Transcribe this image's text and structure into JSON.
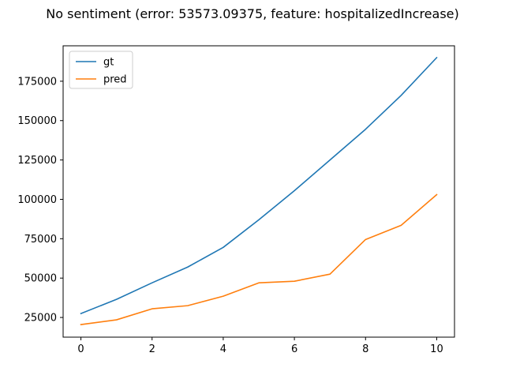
{
  "chart_data": {
    "type": "line",
    "title": "No sentiment (error: 53573.09375, feature: hospitalizedIncrease)",
    "xlabel": "",
    "ylabel": "",
    "x": [
      0,
      1,
      2,
      3,
      4,
      5,
      6,
      7,
      8,
      9,
      10
    ],
    "xlim": [
      -0.5,
      10.5
    ],
    "ylim": [
      12500,
      197500
    ],
    "xticks": [
      0,
      2,
      4,
      6,
      8,
      10
    ],
    "yticks": [
      25000,
      50000,
      75000,
      100000,
      125000,
      150000,
      175000
    ],
    "grid": false,
    "legend_position": "upper-left",
    "series": [
      {
        "name": "gt",
        "color": "#1f77b4",
        "values": [
          27500,
          36500,
          47000,
          57000,
          69500,
          87000,
          105500,
          125000,
          144500,
          166000,
          190000
        ]
      },
      {
        "name": "pred",
        "color": "#ff7f0e",
        "values": [
          20500,
          23500,
          30500,
          32500,
          38500,
          47000,
          48000,
          52500,
          74500,
          83500,
          103000
        ]
      }
    ]
  }
}
